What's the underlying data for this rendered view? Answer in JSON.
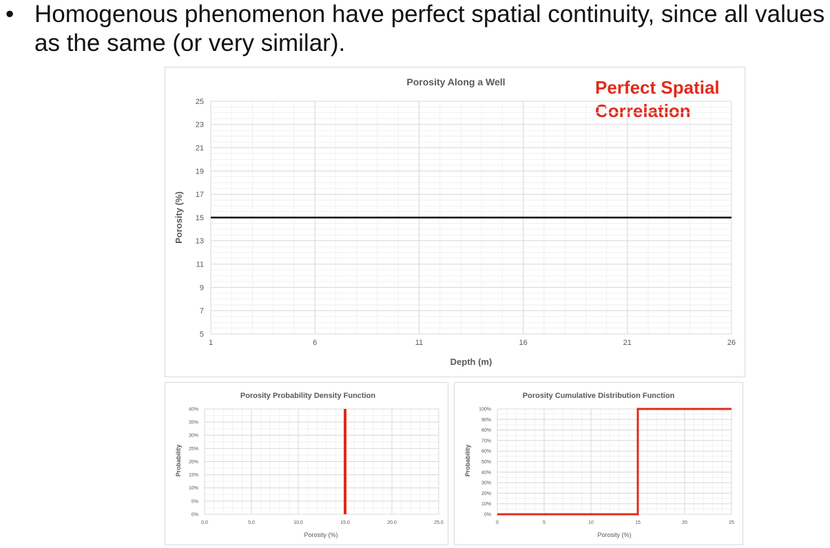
{
  "slide": {
    "bullet_symbol": "•",
    "bullet_text": "Homogenous phenomenon have perfect spatial continuity, since all values as the same (or very similar)."
  },
  "chart_data": [
    {
      "type": "line",
      "title": "Porosity Along a Well",
      "annotation": "Perfect Spatial Correlation",
      "annotation_color": "#e02b1c",
      "xlabel": "Depth (m)",
      "ylabel": "Porosity (%)",
      "xlim": [
        1,
        26
      ],
      "ylim": [
        5,
        25
      ],
      "x_ticks": [
        "1",
        "6",
        "11",
        "16",
        "21",
        "26"
      ],
      "y_ticks": [
        "5",
        "7",
        "9",
        "11",
        "13",
        "15",
        "17",
        "19",
        "21",
        "23",
        "25"
      ],
      "grid": true,
      "series": [
        {
          "x": [
            1,
            26
          ],
          "y": [
            15,
            15
          ],
          "color": "#000000"
        }
      ]
    },
    {
      "type": "line",
      "title": "Porosity Probability Density Function",
      "xlabel": "Porosity (%)",
      "ylabel": "Probability",
      "xlim": [
        0,
        25
      ],
      "ylim": [
        0,
        40
      ],
      "x_ticks": [
        "0.0",
        "5.0",
        "10.0",
        "15.0",
        "20.0",
        "25.0"
      ],
      "y_ticks": [
        "0%",
        "5%",
        "10%",
        "15%",
        "20%",
        "25%",
        "30%",
        "35%",
        "40%"
      ],
      "grid": true,
      "series": [
        {
          "x": [
            15,
            15
          ],
          "y": [
            0,
            40
          ],
          "color": "#e02b1c"
        }
      ]
    },
    {
      "type": "line",
      "title": "Porosity Cumulative Distribution Function",
      "xlabel": "Porosity (%)",
      "ylabel": "Probability",
      "xlim": [
        0,
        25
      ],
      "ylim": [
        0,
        100
      ],
      "x_ticks": [
        "0",
        "5",
        "10",
        "15",
        "20",
        "25"
      ],
      "y_ticks": [
        "0%",
        "10%",
        "20%",
        "30%",
        "40%",
        "50%",
        "60%",
        "70%",
        "80%",
        "90%",
        "100%"
      ],
      "grid": true,
      "series": [
        {
          "x": [
            0,
            15,
            15,
            25
          ],
          "y": [
            0,
            0,
            100,
            100
          ],
          "color": "#e02b1c"
        }
      ]
    }
  ]
}
